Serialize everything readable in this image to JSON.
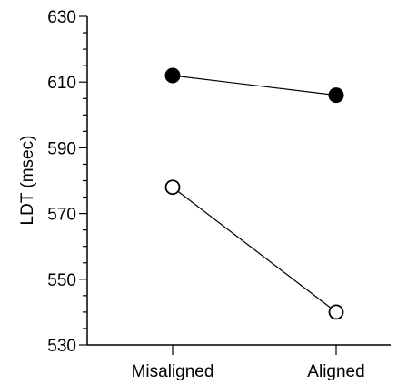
{
  "chart_data": {
    "type": "line",
    "ylabel": "LDT (msec)",
    "xlabel": "",
    "categories": [
      "Misaligned",
      "Aligned"
    ],
    "ylim": [
      530,
      630
    ],
    "yticks_major": [
      530,
      550,
      570,
      590,
      610,
      630
    ],
    "y_minor_step": 5,
    "grid": false,
    "series": [
      {
        "marker": "filled-circle",
        "values": [
          612,
          606
        ]
      },
      {
        "marker": "open-circle",
        "values": [
          578,
          540
        ]
      }
    ]
  }
}
